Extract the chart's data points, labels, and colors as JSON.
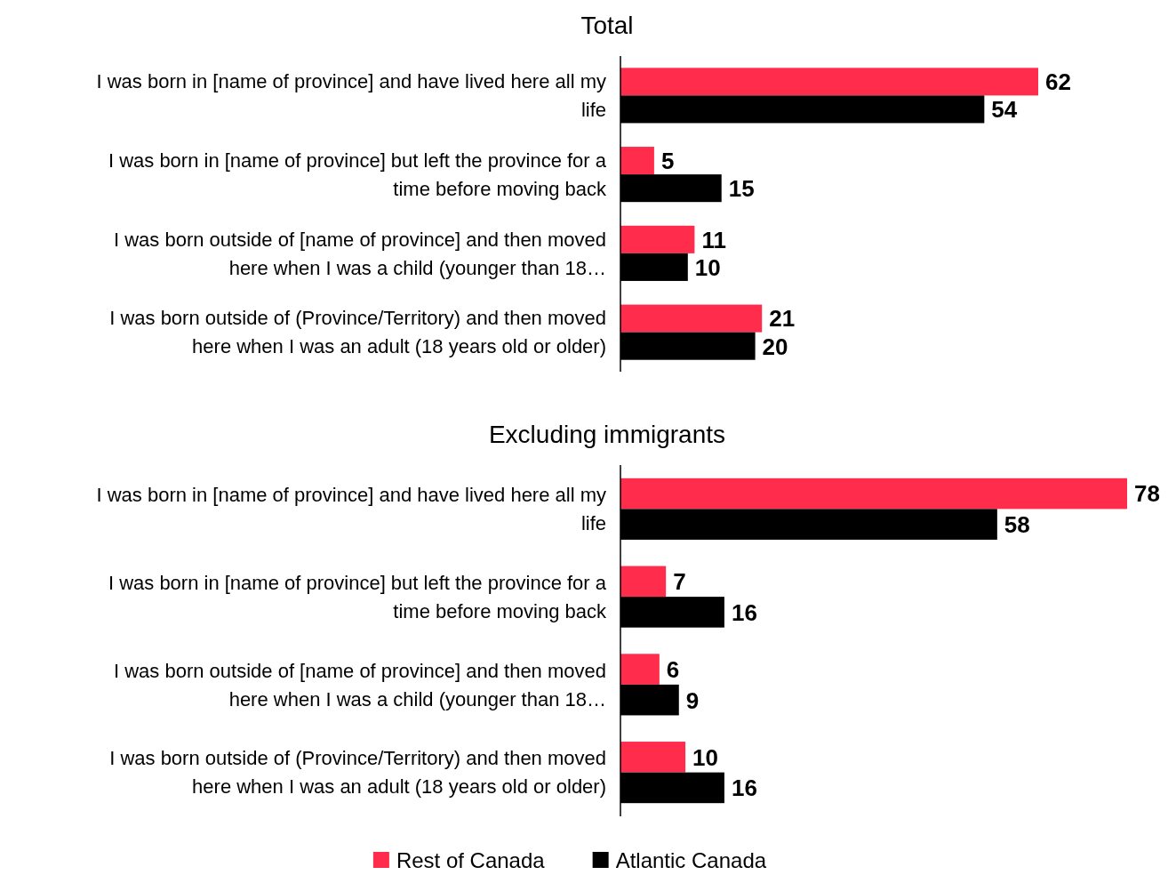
{
  "chart_data": [
    {
      "type": "bar",
      "orientation": "horizontal",
      "title": "Total",
      "categories": [
        "I was born in [name of province] and have lived here all my life",
        "I was born in [name of province] but left the province for a time before moving back",
        "I was born outside of [name of province] and then moved here when I was a child (younger than 18…",
        "I was born outside of (Province/Territory) and then moved here when I was an adult (18 years old or older)"
      ],
      "series": [
        {
          "color": "#ff2d4b",
          "values": [
            62,
            5,
            11,
            21
          ]
        },
        {
          "color": "#000000",
          "values": [
            54,
            15,
            10,
            20
          ]
        }
      ],
      "data_labels": true,
      "tick_labels": "y",
      "grid": false,
      "legend": false
    },
    {
      "type": "bar",
      "orientation": "horizontal",
      "title": "Excluding immigrants",
      "categories": [
        "I was born in [name of province] and have lived here all my life",
        "I was born in [name of province] but left the province for a time before moving back",
        "I was born outside of [name of province] and then moved here when I was a child (younger than 18…",
        "I was born outside of (Province/Territory) and then moved here when I was an adult (18 years old or older)"
      ],
      "series": [
        {
          "name": "Rest of Canada",
          "color": "#ff2d4b",
          "values": [
            78,
            7,
            6,
            10
          ]
        },
        {
          "name": "Atlantic Canada",
          "color": "#000000",
          "values": [
            58,
            16,
            9,
            16
          ]
        }
      ],
      "data_labels": true,
      "tick_labels": "y",
      "grid": false,
      "legend": "bottom"
    }
  ]
}
